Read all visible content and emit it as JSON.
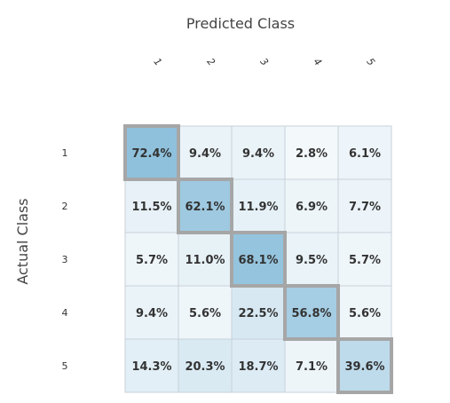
{
  "chart_data": {
    "type": "heatmap",
    "title": "",
    "xlabel": "Predicted Class",
    "ylabel": "Actual Class",
    "x_categories": [
      "1",
      "2",
      "3",
      "4",
      "5"
    ],
    "y_categories": [
      "1",
      "2",
      "3",
      "4",
      "5"
    ],
    "values": [
      [
        72.4,
        9.4,
        9.4,
        2.8,
        6.1
      ],
      [
        11.5,
        62.1,
        11.9,
        6.9,
        7.7
      ],
      [
        5.7,
        11.0,
        68.1,
        9.5,
        5.7
      ],
      [
        9.4,
        5.6,
        22.5,
        56.8,
        5.6
      ],
      [
        14.3,
        20.3,
        18.7,
        7.1,
        39.6
      ]
    ],
    "labels": [
      [
        "72.4%",
        "9.4%",
        "9.4%",
        "2.8%",
        "6.1%"
      ],
      [
        "11.5%",
        "62.1%",
        "11.9%",
        "6.9%",
        "7.7%"
      ],
      [
        "5.7%",
        "11.0%",
        "68.1%",
        "9.5%",
        "5.7%"
      ],
      [
        "9.4%",
        "5.6%",
        "22.5%",
        "56.8%",
        "5.6%"
      ],
      [
        "14.3%",
        "20.3%",
        "18.7%",
        "7.1%",
        "39.6%"
      ]
    ],
    "color_low": "#f3f8fb",
    "color_high": "#8fc1dc",
    "grid_color": "#c8d2da",
    "diagonal_highlight_color": "#a6a6a6",
    "diagonal_highlighted": true
  }
}
